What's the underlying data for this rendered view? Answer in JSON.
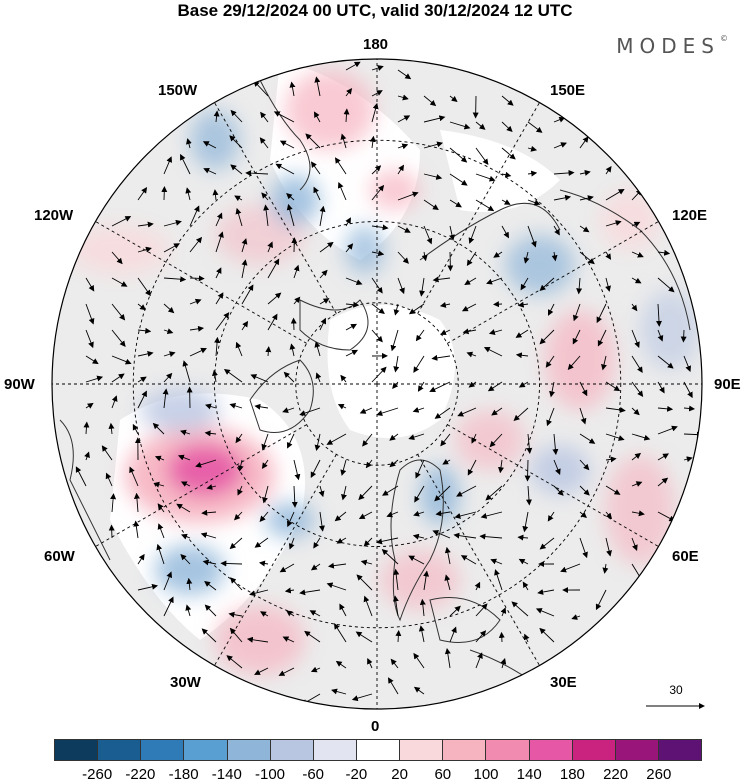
{
  "title": "Base 29/12/2024 00 UTC, valid 30/12/2024 12 UTC",
  "brand": "MODES",
  "brand_mark": "©",
  "longitude_labels": {
    "top": "180",
    "bottom": "0",
    "left": "90W",
    "right": "90E",
    "upper_left_1": "150W",
    "upper_left_2": "120W",
    "upper_right_1": "150E",
    "upper_right_2": "120E",
    "lower_left_1": "60W",
    "lower_left_2": "30W",
    "lower_right_1": "60E",
    "lower_right_2": "30E"
  },
  "reference_vector": {
    "label": "30"
  },
  "colorbar": {
    "colors": [
      "#0d3b5e",
      "#1a5d91",
      "#2f7bb8",
      "#5a9fd1",
      "#8fb5d9",
      "#b9c6e2",
      "#e3e4f1",
      "#ffffff",
      "#f9d9dc",
      "#f6b3c0",
      "#f28bb0",
      "#e658a6",
      "#c9237f",
      "#9a157a",
      "#5e1273"
    ],
    "tick_labels": [
      "-260",
      "-220",
      "-180",
      "-140",
      "-100",
      "-60",
      "-20",
      "20",
      "60",
      "100",
      "140",
      "180",
      "220",
      "260"
    ]
  },
  "colors": {
    "land": "#ececec",
    "ocean": "#ffffff",
    "graticule": "#000000"
  }
}
